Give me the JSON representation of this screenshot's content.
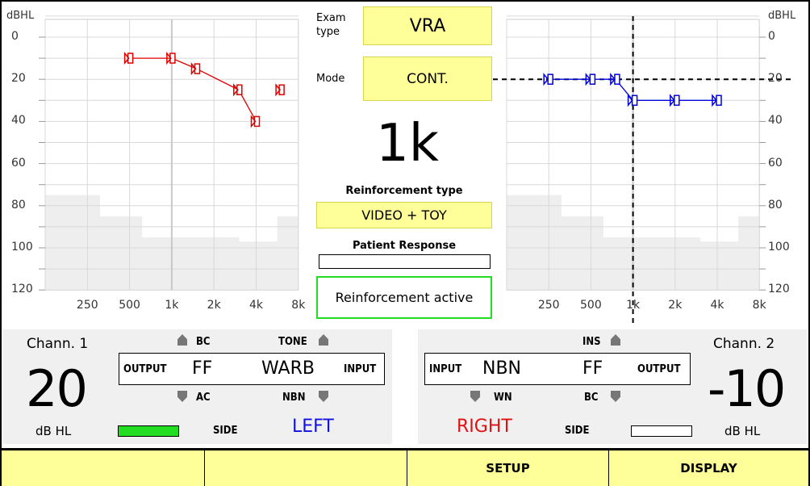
{
  "left_chart": {
    "unit": "dBHL",
    "y_ticks": [
      "0",
      "20",
      "40",
      "60",
      "80",
      "100",
      "120"
    ],
    "x_ticks": [
      "250",
      "500",
      "1k",
      "2k",
      "4k",
      "8k"
    ],
    "symbol_color": "#e00000"
  },
  "right_chart": {
    "unit": "dBHL",
    "y_ticks": [
      "0",
      "20",
      "40",
      "60",
      "80",
      "100",
      "120"
    ],
    "x_ticks": [
      "250",
      "500",
      "1k",
      "2k",
      "4k",
      "8k"
    ],
    "symbol_color": "#0000e0"
  },
  "chart_data": [
    {
      "type": "line",
      "series": [
        {
          "x": [
            "500",
            "1k",
            "1.5k",
            "3k",
            "4k",
            "6k"
          ],
          "y": [
            10,
            10,
            15,
            25,
            40,
            25
          ],
          "connected": [
            true,
            true,
            true,
            true,
            true,
            false
          ]
        }
      ],
      "xlabel": "",
      "ylabel": "dBHL",
      "ylim": [
        120,
        0
      ]
    },
    {
      "type": "line",
      "series": [
        {
          "x": [
            "250",
            "500",
            "750",
            "1k",
            "2k",
            "4k"
          ],
          "y": [
            20,
            20,
            20,
            30,
            30,
            30
          ]
        }
      ],
      "crosshair": {
        "x": "1k",
        "y": 20
      },
      "xlabel": "",
      "ylabel": "dBHL",
      "ylim": [
        120,
        0
      ]
    }
  ],
  "center": {
    "exam_type_label": "Exam type",
    "exam_type_value": "VRA",
    "mode_label": "Mode",
    "mode_value": "CONT.",
    "frequency": "1k",
    "reinforcement_type_label": "Reinforcement type",
    "reinforcement_type_value": "VIDEO + TOY",
    "patient_response_label": "Patient Response",
    "reinforcement_status": "Reinforcement active"
  },
  "channel1": {
    "title": "Chann. 1",
    "level": "20",
    "unit": "dB HL",
    "bc": "BC",
    "ac": "AC",
    "tone": "TONE",
    "nbn": "NBN",
    "output_label": "OUTPUT",
    "input_label": "INPUT",
    "output_value": "FF",
    "input_value": "WARB",
    "side_label": "SIDE",
    "side_value": "LEFT",
    "side_color": "#1010e0"
  },
  "channel2": {
    "title": "Chann. 2",
    "level": "-10",
    "unit": "dB HL",
    "ins": "INS",
    "bc": "BC",
    "wn": "WN",
    "input_label": "INPUT",
    "output_label": "OUTPUT",
    "input_value": "NBN",
    "output_value": "FF",
    "side_label": "SIDE",
    "side_value": "RIGHT",
    "side_color": "#e01010"
  },
  "function_keys": [
    "",
    "",
    "SETUP",
    "DISPLAY"
  ]
}
